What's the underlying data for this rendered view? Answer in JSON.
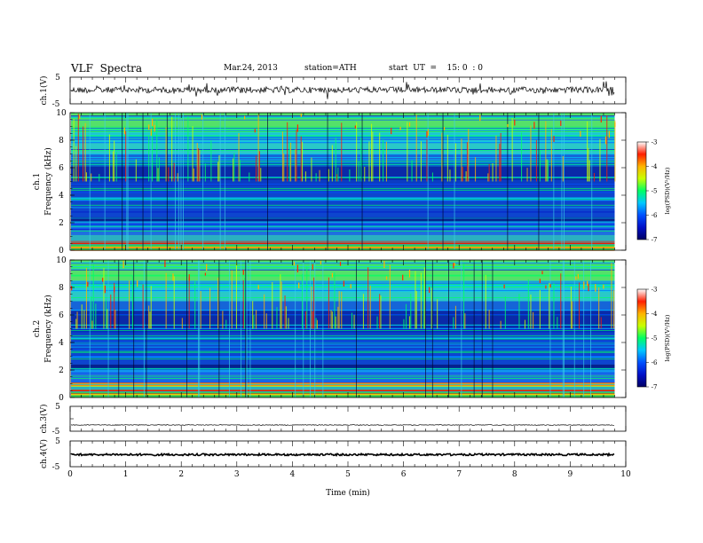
{
  "header": {
    "title": "VLF  Spectra",
    "date": "Mar.24, 2013",
    "station": "station=ATH",
    "start": "start  UT  =    15: 0  : 0"
  },
  "chart_data": [
    {
      "type": "line",
      "panel": "ch1",
      "ylabel": "ch.1(V)",
      "ylim": [
        -5,
        5
      ],
      "yticks": [
        "5",
        "-5"
      ],
      "trace_level": 0.2
    },
    {
      "type": "heatmap",
      "panel": "spec1",
      "ylabel_top": "ch.1",
      "ylabel": "Frequency  (kHz)",
      "ylim": [
        0,
        10
      ],
      "yticks": [
        "0",
        "2",
        "4",
        "6",
        "8",
        "10"
      ],
      "colorbar": {
        "label": "log(PSD)(V²/Hz)",
        "range": [
          -7,
          -3
        ],
        "ticks": [
          "-3",
          "-4",
          "-5",
          "-6",
          "-7"
        ]
      }
    },
    {
      "type": "heatmap",
      "panel": "spec2",
      "ylabel_top": "ch.2",
      "ylabel": "Frequency  (kHz)",
      "ylim": [
        0,
        10
      ],
      "yticks": [
        "0",
        "2",
        "4",
        "6",
        "8",
        "10"
      ],
      "colorbar": {
        "label": "log(PSD)(V²/Hz)",
        "range": [
          -7,
          -3
        ],
        "ticks": [
          "-3",
          "-4",
          "-5",
          "-6",
          "-7"
        ]
      }
    },
    {
      "type": "line",
      "panel": "ch3",
      "ylabel": "ch.3(V)",
      "ylim": [
        -5,
        5
      ],
      "yticks": [
        "5",
        "-5"
      ],
      "trace_level": -2.5
    },
    {
      "type": "line",
      "panel": "ch4",
      "ylabel": "ch.4(V)",
      "ylim": [
        -5,
        5
      ],
      "yticks": [
        "5",
        "-5"
      ],
      "trace_level": -0.3
    }
  ],
  "xaxis": {
    "label": "Time  (min)",
    "xlim": [
      0,
      10
    ],
    "ticks": [
      "0",
      "1",
      "2",
      "3",
      "4",
      "5",
      "6",
      "7",
      "8",
      "9",
      "10"
    ],
    "data_end": 9.8
  },
  "colors": {
    "spec_bg": "#1f7fe8",
    "scale": [
      "#000064",
      "#0010c8",
      "#0050ff",
      "#00c8ff",
      "#00ff64",
      "#c8ff00",
      "#ffb400",
      "#ff1e00",
      "#ffffff"
    ]
  }
}
